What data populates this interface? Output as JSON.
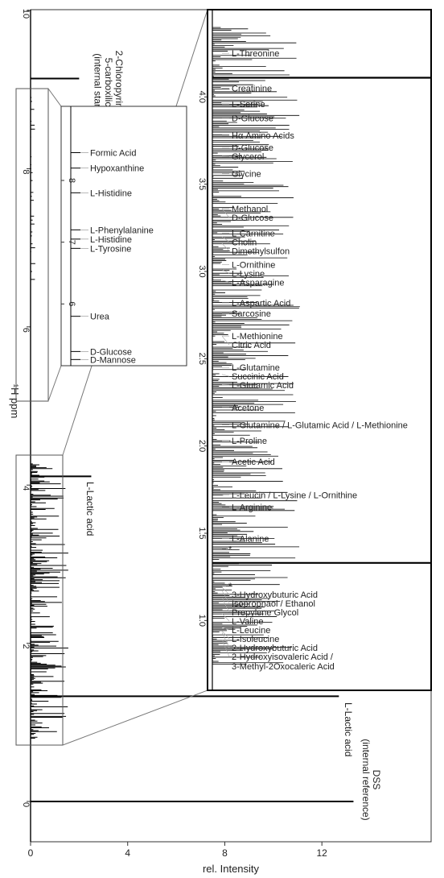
{
  "chart_data": {
    "type": "line",
    "orientation": "vertical-ppm",
    "xlabel": "rel. Intensity",
    "ylabel": "¹H ppm",
    "xlim": [
      0,
      16.5
    ],
    "ylim": [
      -0.8,
      10
    ],
    "x_ticks": [
      "0",
      "4",
      "8",
      "12"
    ],
    "y_ticks": [
      "0",
      "2",
      "4",
      "6",
      "8",
      "10"
    ],
    "peaks": [
      {
        "ppm": 0.0,
        "intensity": 13.3,
        "label": "DSS\n(internal reference)"
      },
      {
        "ppm": 1.33,
        "intensity": 12.7,
        "label": "L-Lactic acid"
      },
      {
        "ppm": 4.11,
        "intensity": 2.5,
        "label": "L-Lactic acid"
      },
      {
        "ppm": 9.14,
        "intensity": 2.0,
        "label": "2-Chloropyrimidine-\n5-carboxilic Acid\n(internal standard)"
      }
    ],
    "inset_aromatic": {
      "ppm_range": [
        5.0,
        9.2
      ],
      "y_ticks": [
        "8",
        "7",
        "6"
      ],
      "labels": [
        {
          "ppm": 8.45,
          "text": "Formic Acid"
        },
        {
          "ppm": 8.2,
          "text": "Hypoxanthine"
        },
        {
          "ppm": 7.8,
          "text": "L-Histidine"
        },
        {
          "ppm": 7.2,
          "text": "L-Phenylalanine"
        },
        {
          "ppm": 7.05,
          "text": "L-Histidine"
        },
        {
          "ppm": 6.9,
          "text": "L-Tyrosine"
        },
        {
          "ppm": 5.8,
          "text": "Urea"
        },
        {
          "ppm": 5.23,
          "text": "D-Glucose"
        },
        {
          "ppm": 5.1,
          "text": "D-Mannose"
        }
      ]
    },
    "inset_aliphatic": {
      "ppm_range": [
        0.6,
        4.5
      ],
      "y_ticks": [
        "4.0",
        "3.5",
        "3.0",
        "2.5",
        "2.0",
        "1.5",
        "1.0"
      ],
      "labels": [
        {
          "ppm": 4.25,
          "text": "L-Threonine"
        },
        {
          "ppm": 4.05,
          "text": "Creatinine"
        },
        {
          "ppm": 3.96,
          "text": "L-Serine"
        },
        {
          "ppm": 3.88,
          "text": "D-Glucose"
        },
        {
          "ppm": 3.78,
          "text": "Hα Amino Acids"
        },
        {
          "ppm": 3.71,
          "text": "D-Glucose"
        },
        {
          "ppm": 3.66,
          "text": "Glycerol"
        },
        {
          "ppm": 3.56,
          "text": "Glycine"
        },
        {
          "ppm": 3.36,
          "text": "Methanol"
        },
        {
          "ppm": 3.36,
          "text": "D-Glucose"
        },
        {
          "ppm": 3.22,
          "text": "L-Carnitine"
        },
        {
          "ppm": 3.2,
          "text": "Cholin"
        },
        {
          "ppm": 3.16,
          "text": "Dimethylsulfon"
        },
        {
          "ppm": 3.04,
          "text": "L-Ornithine"
        },
        {
          "ppm": 3.01,
          "text": "L-Lysine"
        },
        {
          "ppm": 2.95,
          "text": "L-Asparagine"
        },
        {
          "ppm": 2.82,
          "text": "L-Aspartic Acid"
        },
        {
          "ppm": 2.76,
          "text": "Sarcosine"
        },
        {
          "ppm": 2.63,
          "text": "L-Methionine"
        },
        {
          "ppm": 2.63,
          "text": "Citric Acid"
        },
        {
          "ppm": 2.45,
          "text": "L-Glutamine"
        },
        {
          "ppm": 2.41,
          "text": "Succinic Acid"
        },
        {
          "ppm": 2.35,
          "text": "L-Glutamic Acid"
        },
        {
          "ppm": 2.22,
          "text": "Acetone"
        },
        {
          "ppm": 2.12,
          "text": "L-Glutamine / L-Glutamic Acid / L-Methionine"
        },
        {
          "ppm": 2.03,
          "text": "L-Proline"
        },
        {
          "ppm": 1.91,
          "text": "Acetic Acid"
        },
        {
          "ppm": 1.72,
          "text": "L-Leucin / L-Lysine / L-Ornithine"
        },
        {
          "ppm": 1.65,
          "text": "L-Arginine"
        },
        {
          "ppm": 1.47,
          "text": "L-Alanine"
        },
        {
          "ppm": 1.41,
          "text": "*"
        },
        {
          "ppm": 1.2,
          "text": "*"
        },
        {
          "ppm": 1.19,
          "text": "3-Hydroxybuturic Acid"
        },
        {
          "ppm": 1.17,
          "text": "Isopropnaol / Ethanol"
        },
        {
          "ppm": 1.13,
          "text": "Propylene Glycol"
        },
        {
          "ppm": 1.04,
          "text": "L-Valine"
        },
        {
          "ppm": 0.96,
          "text": "L-Leucine"
        },
        {
          "ppm": 0.94,
          "text": "L-Isoleucine"
        },
        {
          "ppm": 0.93,
          "text": "2-Hydroxybuturic Acid"
        },
        {
          "ppm": 0.89,
          "text": "2-Hydroxyisovaleric Acid /\n3-Methyl-2Oxocaleric Acid"
        }
      ]
    }
  }
}
